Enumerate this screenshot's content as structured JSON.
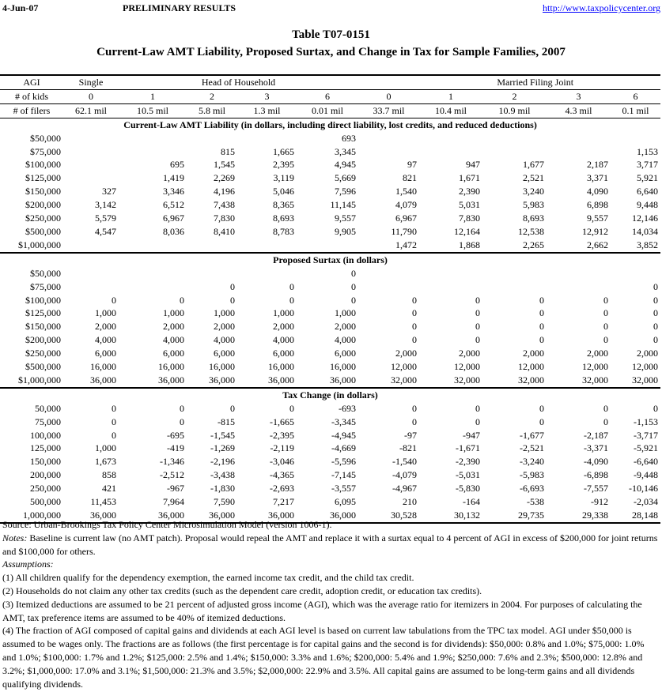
{
  "header": {
    "date": "4-Jun-07",
    "status": "PRELIMINARY RESULTS",
    "url": "http://www.taxpolicycenter.org"
  },
  "title": {
    "line1": "Table T07-0151",
    "line2": "Current-Law AMT Liability, Proposed Surtax, and Change in Tax for Sample Families, 2007"
  },
  "table": {
    "group_headers": {
      "agi": "AGI",
      "single": "Single",
      "hoh": "Head of Household",
      "mfj": "Married Filing Joint"
    },
    "kids_label": "# of kids",
    "kids": [
      "0",
      "1",
      "2",
      "3",
      "6",
      "0",
      "1",
      "2",
      "3",
      "6"
    ],
    "filers_label": "# of filers",
    "filers": [
      "62.1 mil",
      "10.5 mil",
      "5.8 mil",
      "1.3 mil",
      "0.01 mil",
      "33.7 mil",
      "10.4 mil",
      "10.9 mil",
      "4.3 mil",
      "0.1 mil"
    ],
    "sections": [
      {
        "title": "Current-Law AMT Liability (in dollars, including direct liability, lost credits, and reduced deductions)",
        "rows": [
          {
            "agi": "$50,000",
            "values": [
              "",
              "",
              "",
              "",
              "693",
              "",
              "",
              "",
              "",
              ""
            ]
          },
          {
            "agi": "$75,000",
            "values": [
              "",
              "",
              "815",
              "1,665",
              "3,345",
              "",
              "",
              "",
              "",
              "1,153"
            ]
          },
          {
            "agi": "$100,000",
            "values": [
              "",
              "695",
              "1,545",
              "2,395",
              "4,945",
              "97",
              "947",
              "1,677",
              "2,187",
              "3,717"
            ]
          },
          {
            "agi": "$125,000",
            "values": [
              "",
              "1,419",
              "2,269",
              "3,119",
              "5,669",
              "821",
              "1,671",
              "2,521",
              "3,371",
              "5,921"
            ]
          },
          {
            "agi": "$150,000",
            "values": [
              "327",
              "3,346",
              "4,196",
              "5,046",
              "7,596",
              "1,540",
              "2,390",
              "3,240",
              "4,090",
              "6,640"
            ]
          },
          {
            "agi": "$200,000",
            "values": [
              "3,142",
              "6,512",
              "7,438",
              "8,365",
              "11,145",
              "4,079",
              "5,031",
              "5,983",
              "6,898",
              "9,448"
            ]
          },
          {
            "agi": "$250,000",
            "values": [
              "5,579",
              "6,967",
              "7,830",
              "8,693",
              "9,557",
              "6,967",
              "7,830",
              "8,693",
              "9,557",
              "12,146"
            ]
          },
          {
            "agi": "$500,000",
            "values": [
              "4,547",
              "8,036",
              "8,410",
              "8,783",
              "9,905",
              "11,790",
              "12,164",
              "12,538",
              "12,912",
              "14,034"
            ]
          },
          {
            "agi": "$1,000,000",
            "values": [
              "",
              "",
              "",
              "",
              "",
              "1,472",
              "1,868",
              "2,265",
              "2,662",
              "3,852"
            ]
          }
        ]
      },
      {
        "title": "Proposed Surtax (in dollars)",
        "rows": [
          {
            "agi": "$50,000",
            "values": [
              "",
              "",
              "",
              "",
              "0",
              "",
              "",
              "",
              "",
              ""
            ]
          },
          {
            "agi": "$75,000",
            "values": [
              "",
              "",
              "0",
              "0",
              "0",
              "",
              "",
              "",
              "",
              "0"
            ]
          },
          {
            "agi": "$100,000",
            "values": [
              "0",
              "0",
              "0",
              "0",
              "0",
              "0",
              "0",
              "0",
              "0",
              "0"
            ]
          },
          {
            "agi": "$125,000",
            "values": [
              "1,000",
              "1,000",
              "1,000",
              "1,000",
              "1,000",
              "0",
              "0",
              "0",
              "0",
              "0"
            ]
          },
          {
            "agi": "$150,000",
            "values": [
              "2,000",
              "2,000",
              "2,000",
              "2,000",
              "2,000",
              "0",
              "0",
              "0",
              "0",
              "0"
            ]
          },
          {
            "agi": "$200,000",
            "values": [
              "4,000",
              "4,000",
              "4,000",
              "4,000",
              "4,000",
              "0",
              "0",
              "0",
              "0",
              "0"
            ]
          },
          {
            "agi": "$250,000",
            "values": [
              "6,000",
              "6,000",
              "6,000",
              "6,000",
              "6,000",
              "2,000",
              "2,000",
              "2,000",
              "2,000",
              "2,000"
            ]
          },
          {
            "agi": "$500,000",
            "values": [
              "16,000",
              "16,000",
              "16,000",
              "16,000",
              "16,000",
              "12,000",
              "12,000",
              "12,000",
              "12,000",
              "12,000"
            ]
          },
          {
            "agi": "$1,000,000",
            "values": [
              "36,000",
              "36,000",
              "36,000",
              "36,000",
              "36,000",
              "32,000",
              "32,000",
              "32,000",
              "32,000",
              "32,000"
            ]
          }
        ]
      },
      {
        "title": "Tax Change (in dollars)",
        "rows": [
          {
            "agi": "50,000",
            "values": [
              "0",
              "0",
              "0",
              "0",
              "-693",
              "0",
              "0",
              "0",
              "0",
              "0"
            ]
          },
          {
            "agi": "75,000",
            "values": [
              "0",
              "0",
              "-815",
              "-1,665",
              "-3,345",
              "0",
              "0",
              "0",
              "0",
              "-1,153"
            ]
          },
          {
            "agi": "100,000",
            "values": [
              "0",
              "-695",
              "-1,545",
              "-2,395",
              "-4,945",
              "-97",
              "-947",
              "-1,677",
              "-2,187",
              "-3,717"
            ]
          },
          {
            "agi": "125,000",
            "values": [
              "1,000",
              "-419",
              "-1,269",
              "-2,119",
              "-4,669",
              "-821",
              "-1,671",
              "-2,521",
              "-3,371",
              "-5,921"
            ]
          },
          {
            "agi": "150,000",
            "values": [
              "1,673",
              "-1,346",
              "-2,196",
              "-3,046",
              "-5,596",
              "-1,540",
              "-2,390",
              "-3,240",
              "-4,090",
              "-6,640"
            ]
          },
          {
            "agi": "200,000",
            "values": [
              "858",
              "-2,512",
              "-3,438",
              "-4,365",
              "-7,145",
              "-4,079",
              "-5,031",
              "-5,983",
              "-6,898",
              "-9,448"
            ]
          },
          {
            "agi": "250,000",
            "values": [
              "421",
              "-967",
              "-1,830",
              "-2,693",
              "-3,557",
              "-4,967",
              "-5,830",
              "-6,693",
              "-7,557",
              "-10,146"
            ]
          },
          {
            "agi": "500,000",
            "values": [
              "11,453",
              "7,964",
              "7,590",
              "7,217",
              "6,095",
              "210",
              "-164",
              "-538",
              "-912",
              "-2,034"
            ]
          },
          {
            "agi": "1,000,000",
            "values": [
              "36,000",
              "36,000",
              "36,000",
              "36,000",
              "36,000",
              "30,528",
              "30,132",
              "29,735",
              "29,338",
              "28,148"
            ]
          }
        ]
      }
    ]
  },
  "notes": {
    "source": "Source: Urban-Brookings Tax Policy Center Microsimulation Model (version 1006-1).",
    "notes_label": "Notes:",
    "notes_text": " Baseline is current law (no AMT patch). Proposal would repeal the AMT and replace it with a surtax equal to 4 percent of AGI in excess of $200,000 for joint returns and $100,000 for others.",
    "assumptions_label": "Assumptions:",
    "assumptions": [
      "(1) All children qualify for the dependency exemption, the earned income tax credit, and the child tax credit.",
      "(2) Households do not claim any other tax credits (such as the dependent care credit, adoption credit, or education tax credits).",
      "(3) Itemized deductions are assumed to be 21 percent of adjusted gross income (AGI), which was the average ratio for itemizers in 2004. For purposes of calculating the AMT, tax preference items are assumed to be 40% of itemized deductions.",
      "(4) The fraction of AGI composed of capital gains and dividends at each AGI level is based on current law tabulations from the TPC tax model. AGI under $50,000 is assumed to be wages only. The fractions are as follows (the first percentage is for capital gains and the second is for dividends): $50,000: 0.8% and 1.0%; $75,000: 1.0% and 1.0%; $100,000: 1.7% and 1.2%; $125,000: 2.5% and 1.4%; $150,000: 3.3% and 1.6%; $200,000: 5.4% and 1.9%; $250,000: 7.6% and 2.3%; $500,000: 12.8% and 3.2%; $1,000,000: 17.0% and 3.1%; $1,500,000: 21.3% and 3.5%; $2,000,000: 22.9% and 3.5%. All capital gains are assumed to be long-term gains and all dividends qualifying dividends."
    ]
  }
}
